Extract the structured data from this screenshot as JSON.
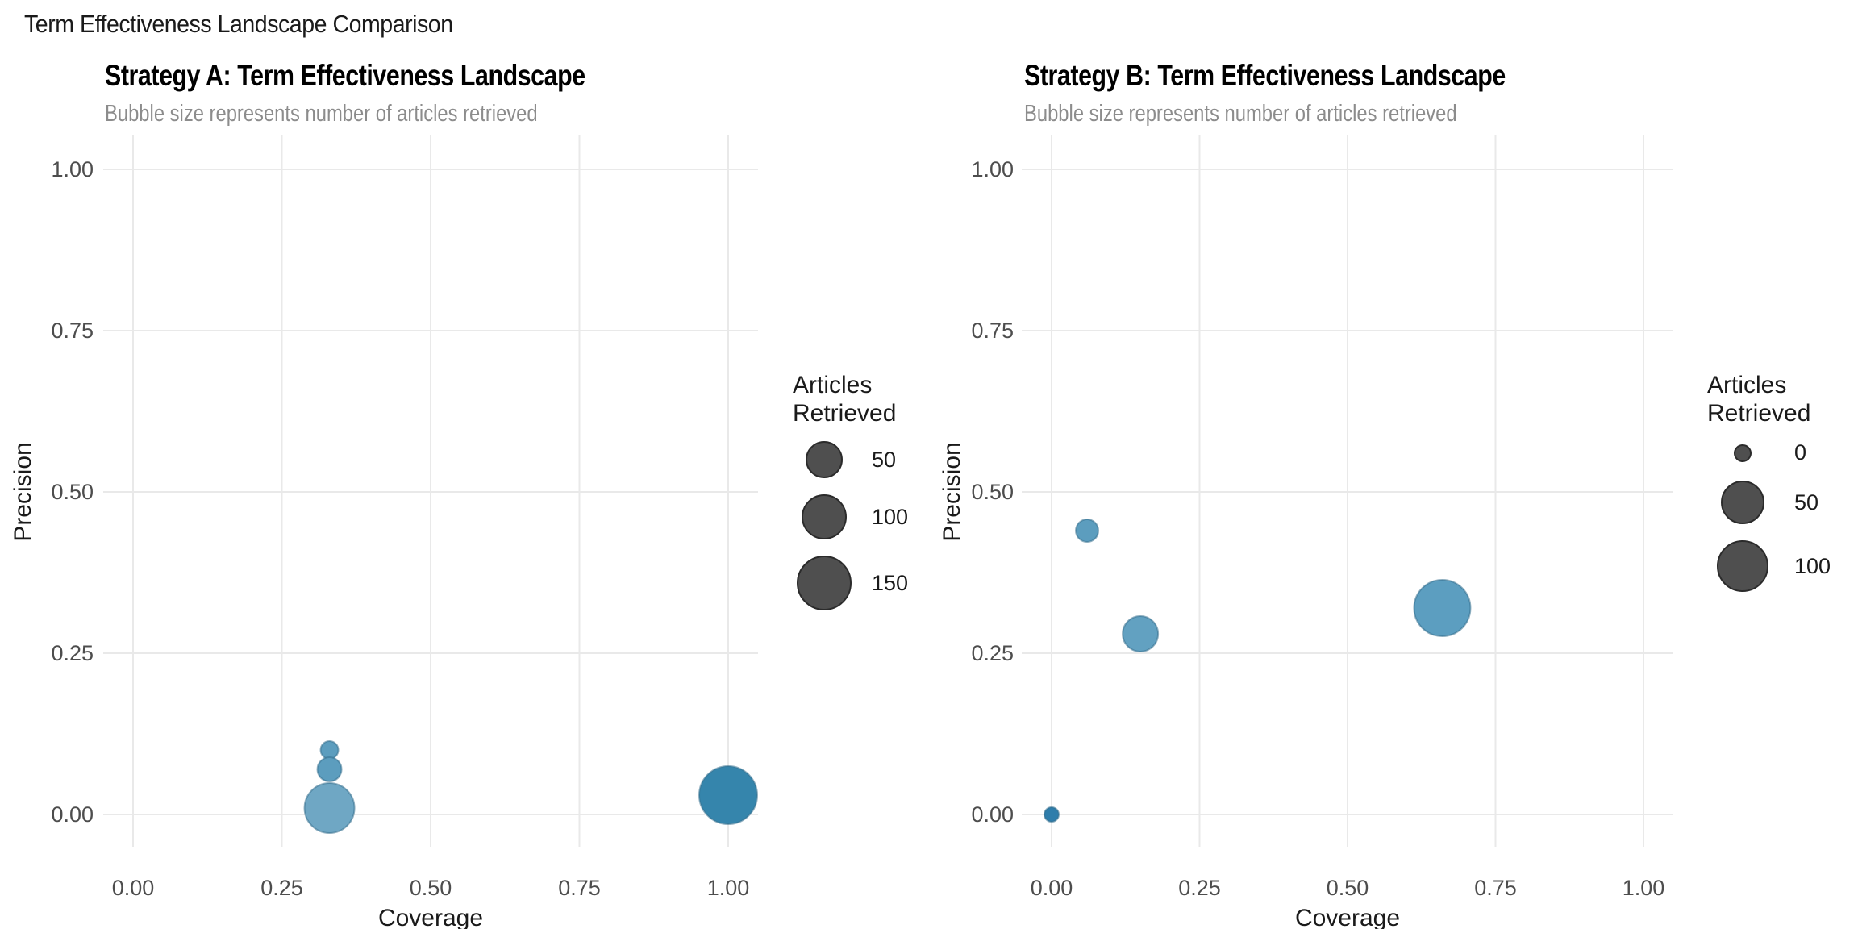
{
  "page": {
    "title": "Term Effectiveness Landscape Comparison",
    "background": "#ffffff"
  },
  "colors": {
    "grid": "#e9e9e9",
    "tick_label": "#4d4d4d",
    "axis_title": "#1a1a1a",
    "panel_title": "#000000",
    "panel_subtitle": "#8c8c8c",
    "bubble_stroke": "#336e8d",
    "legend_circle_fill": "#4f4f4f",
    "legend_circle_stroke": "#2b2b2b"
  },
  "chart_data": [
    {
      "type": "scatter",
      "panel": "A",
      "title": "Strategy A: Term Effectiveness Landscape",
      "subtitle": "Bubble size represents number of articles retrieved",
      "xlabel": "Coverage",
      "ylabel": "Precision",
      "xlim": [
        0,
        1
      ],
      "ylim": [
        0,
        1
      ],
      "grid": true,
      "legend_position": "right",
      "x_ticks": [
        {
          "value": 0.0,
          "label": "0.00"
        },
        {
          "value": 0.25,
          "label": "0.25"
        },
        {
          "value": 0.5,
          "label": "0.50"
        },
        {
          "value": 0.75,
          "label": "0.75"
        },
        {
          "value": 1.0,
          "label": "1.00"
        }
      ],
      "y_ticks": [
        {
          "value": 0.0,
          "label": "0.00"
        },
        {
          "value": 0.25,
          "label": "0.25"
        },
        {
          "value": 0.5,
          "label": "0.50"
        },
        {
          "value": 0.75,
          "label": "0.75"
        },
        {
          "value": 1.0,
          "label": "1.00"
        }
      ],
      "points": [
        {
          "coverage": 0.33,
          "precision": 0.1,
          "articles_retrieved_est": 5,
          "radius_px": 11,
          "fill": "#5C9DBE"
        },
        {
          "coverage": 0.33,
          "precision": 0.07,
          "articles_retrieved_est": 15,
          "radius_px": 15,
          "fill": "#5C9DBE"
        },
        {
          "coverage": 0.33,
          "precision": 0.01,
          "articles_retrieved_est": 130,
          "radius_px": 31,
          "fill": "#6FA7C4"
        },
        {
          "coverage": 1.0,
          "precision": 0.03,
          "articles_retrieved_est": 185,
          "radius_px": 36,
          "fill": "#3585AC"
        }
      ],
      "legend": {
        "title": "Articles\nRetrieved",
        "items": [
          {
            "label": "50",
            "radius_px": 22
          },
          {
            "label": "100",
            "radius_px": 27
          },
          {
            "label": "150",
            "radius_px": 33
          }
        ]
      }
    },
    {
      "type": "scatter",
      "panel": "B",
      "title": "Strategy B: Term Effectiveness Landscape",
      "subtitle": "Bubble size represents number of articles retrieved",
      "xlabel": "Coverage",
      "ylabel": "Precision",
      "xlim": [
        0,
        1
      ],
      "ylim": [
        0,
        1
      ],
      "grid": true,
      "legend_position": "right",
      "x_ticks": [
        {
          "value": 0.0,
          "label": "0.00"
        },
        {
          "value": 0.25,
          "label": "0.25"
        },
        {
          "value": 0.5,
          "label": "0.50"
        },
        {
          "value": 0.75,
          "label": "0.75"
        },
        {
          "value": 1.0,
          "label": "1.00"
        }
      ],
      "y_ticks": [
        {
          "value": 0.0,
          "label": "0.00"
        },
        {
          "value": 0.25,
          "label": "0.25"
        },
        {
          "value": 0.5,
          "label": "0.50"
        },
        {
          "value": 0.75,
          "label": "0.75"
        },
        {
          "value": 1.0,
          "label": "1.00"
        }
      ],
      "points": [
        {
          "coverage": 0.0,
          "precision": 0.0,
          "articles_retrieved_est": 0,
          "radius_px": 9,
          "fill": "#2E7DAB"
        },
        {
          "coverage": 0.06,
          "precision": 0.44,
          "articles_retrieved_est": 5,
          "radius_px": 14,
          "fill": "#5C9DBE"
        },
        {
          "coverage": 0.15,
          "precision": 0.28,
          "articles_retrieved_est": 35,
          "radius_px": 22,
          "fill": "#62A1C1"
        },
        {
          "coverage": 0.66,
          "precision": 0.32,
          "articles_retrieved_est": 145,
          "radius_px": 35,
          "fill": "#5C9EC0"
        }
      ],
      "legend": {
        "title": "Articles\nRetrieved",
        "items": [
          {
            "label": "0",
            "radius_px": 10
          },
          {
            "label": "50",
            "radius_px": 26
          },
          {
            "label": "100",
            "radius_px": 31
          }
        ]
      }
    }
  ]
}
